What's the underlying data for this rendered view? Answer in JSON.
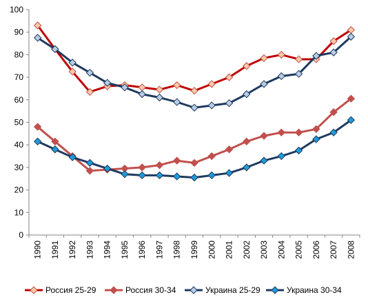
{
  "chart_data": {
    "type": "line",
    "title": "",
    "xlabel": "",
    "ylabel": "",
    "ylim": [
      0,
      100
    ],
    "yticks": [
      0,
      10,
      20,
      30,
      40,
      50,
      60,
      70,
      80,
      90,
      100
    ],
    "grid": false,
    "legend_position": "bottom",
    "categories": [
      "1990",
      "1991",
      "1992",
      "1993",
      "1994",
      "1995",
      "1996",
      "1997",
      "1998",
      "1999",
      "2000",
      "2001",
      "2002",
      "2003",
      "2004",
      "2005",
      "2006",
      "2007",
      "2008"
    ],
    "series": [
      {
        "name": "Россия 25-29",
        "line_color": "#c0504d",
        "stroke": "#c00000",
        "marker": "diamond",
        "marker_fill": "#f9c9a8",
        "marker_stroke": "#c0504d",
        "values": [
          93,
          82.5,
          72.5,
          63.5,
          66,
          66.5,
          65.5,
          64.5,
          66.5,
          64,
          67,
          70,
          75,
          78.5,
          80,
          78,
          78,
          86,
          91
        ]
      },
      {
        "name": "Россия 30-34",
        "line_color": "#c0504d",
        "stroke": "#c0504d",
        "marker": "diamond",
        "marker_fill": "#c0504d",
        "marker_stroke": "#c0504d",
        "values": [
          48,
          41.5,
          35,
          28.5,
          29,
          29.5,
          30,
          31,
          33,
          32,
          35,
          38,
          41.5,
          44,
          45.5,
          45.5,
          47,
          54.5,
          60.5
        ]
      },
      {
        "name": "Украина 25-29",
        "line_color": "#1f3a5f",
        "stroke": "#1f3a5f",
        "marker": "diamond",
        "marker_fill": "#b8cce4",
        "marker_stroke": "#1f3a5f",
        "values": [
          87.5,
          82.5,
          76.5,
          72,
          67.5,
          65.5,
          62.5,
          61,
          59,
          56.5,
          57.5,
          58.5,
          62.5,
          67,
          70.5,
          71.5,
          79.5,
          81,
          88
        ]
      },
      {
        "name": "Украина 30-34",
        "line_color": "#1f3a5f",
        "stroke": "#1f3a5f",
        "marker": "diamond",
        "marker_fill": "#1f9bd7",
        "marker_stroke": "#1f3a5f",
        "values": [
          41.5,
          38,
          34.5,
          32,
          29.5,
          27,
          26.5,
          26.5,
          26,
          25.5,
          26.5,
          27.5,
          30,
          33,
          35,
          37.5,
          42.5,
          45.5,
          51
        ]
      }
    ]
  }
}
